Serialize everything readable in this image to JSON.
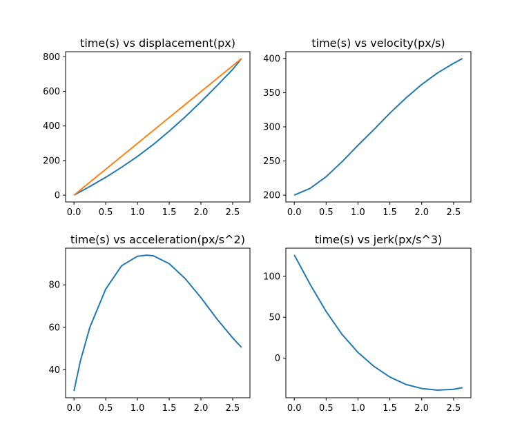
{
  "chart_data": [
    {
      "type": "line",
      "title": "time(s) vs displacement(px)",
      "xlim": [
        -0.132,
        2.772
      ],
      "ylim": [
        -39.5,
        829.5
      ],
      "xticks": [
        0,
        0.5,
        1,
        1.5,
        2,
        2.5
      ],
      "xtick_labels": [
        "0.0",
        "0.5",
        "1.0",
        "1.5",
        "2.0",
        "2.5"
      ],
      "yticks": [
        0,
        200,
        400,
        600,
        800
      ],
      "ytick_labels": [
        "0",
        "200",
        "400",
        "600",
        "800"
      ],
      "series": [
        {
          "color": "#1f77b4",
          "x": [
            0,
            0.25,
            0.5,
            0.75,
            1.0,
            1.25,
            1.5,
            1.75,
            2.0,
            2.25,
            2.5,
            2.64
          ],
          "y": [
            0,
            50,
            103,
            161,
            224,
            293,
            370,
            452,
            540,
            632,
            727,
            790
          ]
        },
        {
          "color": "#ff7f0e",
          "x": [
            0,
            2.64
          ],
          "y": [
            0,
            790
          ]
        }
      ]
    },
    {
      "type": "line",
      "title": "time(s) vs velocity(px/s)",
      "xlim": [
        -0.132,
        2.772
      ],
      "ylim": [
        190,
        410
      ],
      "xticks": [
        0,
        0.5,
        1,
        1.5,
        2,
        2.5
      ],
      "xtick_labels": [
        "0.0",
        "0.5",
        "1.0",
        "1.5",
        "2.0",
        "2.5"
      ],
      "yticks": [
        200,
        250,
        300,
        350,
        400
      ],
      "ytick_labels": [
        "200",
        "250",
        "300",
        "350",
        "400"
      ],
      "series": [
        {
          "color": "#1f77b4",
          "x": [
            0,
            0.25,
            0.5,
            0.75,
            1.0,
            1.25,
            1.5,
            1.75,
            2.0,
            2.25,
            2.5,
            2.64
          ],
          "y": [
            200,
            210,
            227,
            249,
            273,
            296,
            320,
            342,
            362,
            379,
            393,
            400
          ]
        }
      ]
    },
    {
      "type": "line",
      "title": "time(s) vs acceleration(px/s^2)",
      "xlim": [
        -0.132,
        2.772
      ],
      "ylim": [
        26.8,
        97.3
      ],
      "xticks": [
        0,
        0.5,
        1,
        1.5,
        2,
        2.5
      ],
      "xtick_labels": [
        "0.0",
        "0.5",
        "1.0",
        "1.5",
        "2.0",
        "2.5"
      ],
      "yticks": [
        40,
        60,
        80
      ],
      "ytick_labels": [
        "40",
        "60",
        "80"
      ],
      "series": [
        {
          "color": "#1f77b4",
          "x": [
            0,
            0.1,
            0.25,
            0.5,
            0.75,
            1.0,
            1.15,
            1.25,
            1.5,
            1.75,
            2.0,
            2.25,
            2.5,
            2.64
          ],
          "y": [
            30,
            44,
            60,
            78,
            89,
            93.5,
            94,
            93.7,
            90,
            83,
            74,
            64,
            55,
            50.5
          ]
        }
      ]
    },
    {
      "type": "line",
      "title": "time(s) vs jerk(px/s^3)",
      "xlim": [
        -0.132,
        2.772
      ],
      "ylim": [
        -48.3,
        134.3
      ],
      "xticks": [
        0,
        0.5,
        1,
        1.5,
        2,
        2.5
      ],
      "xtick_labels": [
        "0.0",
        "0.5",
        "1.0",
        "1.5",
        "2.0",
        "2.5"
      ],
      "yticks": [
        0,
        50,
        100
      ],
      "ytick_labels": [
        "0",
        "50",
        "100"
      ],
      "series": [
        {
          "color": "#1f77b4",
          "x": [
            0,
            0.25,
            0.5,
            0.75,
            1.0,
            1.25,
            1.5,
            1.75,
            2.0,
            2.25,
            2.5,
            2.64
          ],
          "y": [
            126,
            90,
            57,
            29,
            7,
            -10,
            -23,
            -32,
            -37,
            -39,
            -38,
            -36
          ]
        }
      ]
    }
  ]
}
